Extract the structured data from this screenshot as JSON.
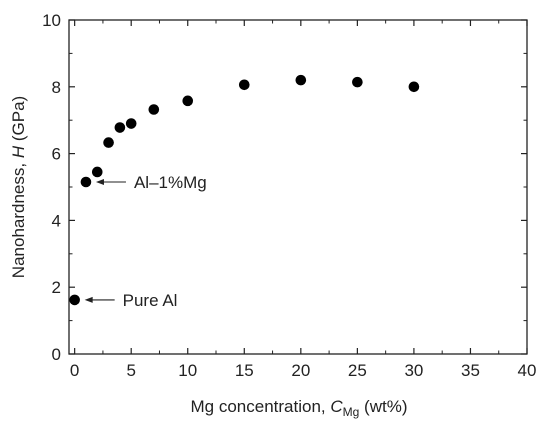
{
  "chart_data": {
    "type": "scatter",
    "series": [
      {
        "x": [
          0,
          1,
          2,
          3,
          4,
          5,
          7,
          10,
          15,
          20,
          25,
          30
        ],
        "y": [
          1.62,
          5.15,
          5.45,
          6.33,
          6.78,
          6.9,
          7.32,
          7.58,
          8.06,
          8.2,
          8.14,
          8.0
        ],
        "marker": "filled-circle",
        "color": "#000000"
      }
    ],
    "xlim": [
      -0.5,
      40
    ],
    "ylim": [
      0,
      10
    ],
    "xticks": [
      0,
      5,
      10,
      15,
      20,
      25,
      30,
      35,
      40
    ],
    "yticks": [
      0,
      2,
      4,
      6,
      8,
      10
    ],
    "xlabel": {
      "prefix": "Mg concentration, ",
      "var": "C",
      "sub": "Mg",
      "suffix": " (wt%)"
    },
    "ylabel": {
      "prefix": "Nanohardness, ",
      "var": "H",
      "suffix": " (GPa)"
    },
    "annotations": [
      {
        "text": "Al–1%Mg",
        "x": 1,
        "y": 5.15
      },
      {
        "text": "Pure Al",
        "x": 0,
        "y": 1.62
      }
    ],
    "grid": false
  }
}
